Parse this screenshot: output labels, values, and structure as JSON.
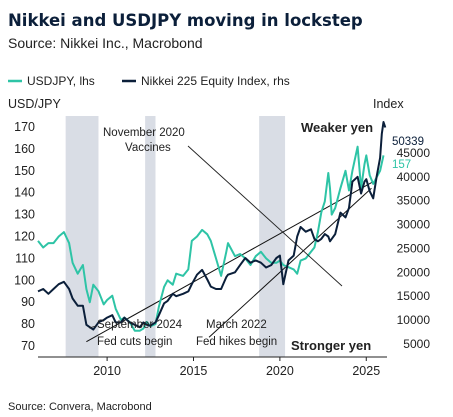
{
  "chart_data": {
    "type": "line",
    "title": "Nikkei and USDJPY moving in lockstep",
    "subtitle": "Source: Nikkei Inc., Macrobond",
    "source_note": "Source: Convera, Macrobond",
    "left_axis": {
      "label": "USD/JPY",
      "range": [
        65,
        175
      ],
      "ticks": [
        70,
        80,
        90,
        100,
        110,
        120,
        130,
        140,
        150,
        160,
        170
      ]
    },
    "right_axis": {
      "label": "Index",
      "range": [
        2250,
        52750
      ],
      "ticks": [
        5000,
        10000,
        15000,
        20000,
        25000,
        30000,
        35000,
        40000,
        45000
      ]
    },
    "x_axis": {
      "range": [
        2006,
        2026.2
      ],
      "ticks": [
        2010,
        2015,
        2020,
        2025
      ]
    },
    "shaded_periods": [
      [
        2007.6,
        2009.5
      ],
      [
        2012.2,
        2012.8
      ],
      [
        2018.8,
        2020.3
      ]
    ],
    "series": [
      {
        "name": "USDJPY, lhs",
        "axis": "left",
        "color": "#2ec4a6",
        "last_value_label": "157",
        "points": [
          [
            2006.0,
            118
          ],
          [
            2006.3,
            115
          ],
          [
            2006.6,
            117
          ],
          [
            2006.9,
            117
          ],
          [
            2007.2,
            120
          ],
          [
            2007.5,
            122
          ],
          [
            2007.8,
            117
          ],
          [
            2008.0,
            108
          ],
          [
            2008.3,
            103
          ],
          [
            2008.6,
            107
          ],
          [
            2008.8,
            96
          ],
          [
            2009.0,
            90
          ],
          [
            2009.2,
            98
          ],
          [
            2009.5,
            95
          ],
          [
            2009.8,
            89
          ],
          [
            2010.0,
            91
          ],
          [
            2010.3,
            93
          ],
          [
            2010.5,
            87
          ],
          [
            2010.8,
            82
          ],
          [
            2011.0,
            83
          ],
          [
            2011.3,
            81
          ],
          [
            2011.6,
            77
          ],
          [
            2011.9,
            77
          ],
          [
            2012.1,
            78
          ],
          [
            2012.3,
            81
          ],
          [
            2012.5,
            79
          ],
          [
            2012.8,
            80
          ],
          [
            2013.0,
            88
          ],
          [
            2013.3,
            97
          ],
          [
            2013.5,
            100
          ],
          [
            2013.8,
            98
          ],
          [
            2014.0,
            103
          ],
          [
            2014.4,
            102
          ],
          [
            2014.7,
            105
          ],
          [
            2014.9,
            118
          ],
          [
            2015.2,
            120
          ],
          [
            2015.5,
            123
          ],
          [
            2015.8,
            121
          ],
          [
            2016.0,
            118
          ],
          [
            2016.3,
            110
          ],
          [
            2016.6,
            102
          ],
          [
            2016.9,
            113
          ],
          [
            2017.0,
            117
          ],
          [
            2017.4,
            111
          ],
          [
            2017.7,
            112
          ],
          [
            2018.0,
            110
          ],
          [
            2018.3,
            107
          ],
          [
            2018.6,
            111
          ],
          [
            2018.9,
            113
          ],
          [
            2019.2,
            110
          ],
          [
            2019.5,
            108
          ],
          [
            2019.8,
            108
          ],
          [
            2020.0,
            109
          ],
          [
            2020.2,
            107
          ],
          [
            2020.5,
            106
          ],
          [
            2020.8,
            105
          ],
          [
            2021.0,
            103
          ],
          [
            2021.2,
            109
          ],
          [
            2021.5,
            110
          ],
          [
            2021.8,
            113
          ],
          [
            2022.0,
            115
          ],
          [
            2022.2,
            122
          ],
          [
            2022.4,
            131
          ],
          [
            2022.6,
            136
          ],
          [
            2022.8,
            149
          ],
          [
            2022.9,
            142
          ],
          [
            2023.0,
            130
          ],
          [
            2023.2,
            133
          ],
          [
            2023.5,
            142
          ],
          [
            2023.8,
            150
          ],
          [
            2024.0,
            141
          ],
          [
            2024.2,
            150
          ],
          [
            2024.5,
            161
          ],
          [
            2024.7,
            142
          ],
          [
            2024.9,
            153
          ],
          [
            2025.0,
            157
          ],
          [
            2025.2,
            148
          ],
          [
            2025.4,
            144
          ],
          [
            2025.6,
            147
          ],
          [
            2025.8,
            150
          ],
          [
            2026.0,
            157
          ]
        ]
      },
      {
        "name": "Nikkei 225 Equity Index, rhs",
        "axis": "right",
        "color": "#0b1f3a",
        "last_value_label": "50339",
        "points": [
          [
            2006.0,
            16000
          ],
          [
            2006.3,
            16500
          ],
          [
            2006.6,
            15500
          ],
          [
            2006.9,
            16500
          ],
          [
            2007.2,
            17500
          ],
          [
            2007.5,
            18000
          ],
          [
            2007.8,
            16500
          ],
          [
            2008.0,
            14500
          ],
          [
            2008.3,
            13000
          ],
          [
            2008.6,
            13000
          ],
          [
            2008.8,
            9000
          ],
          [
            2009.0,
            8500
          ],
          [
            2009.2,
            8000
          ],
          [
            2009.5,
            9500
          ],
          [
            2009.8,
            10000
          ],
          [
            2010.0,
            10500
          ],
          [
            2010.3,
            11000
          ],
          [
            2010.5,
            9500
          ],
          [
            2010.8,
            9500
          ],
          [
            2011.0,
            10500
          ],
          [
            2011.3,
            9500
          ],
          [
            2011.6,
            9000
          ],
          [
            2011.9,
            8500
          ],
          [
            2012.1,
            9500
          ],
          [
            2012.3,
            9000
          ],
          [
            2012.5,
            8800
          ],
          [
            2012.8,
            9500
          ],
          [
            2013.0,
            11000
          ],
          [
            2013.3,
            13500
          ],
          [
            2013.5,
            14000
          ],
          [
            2013.8,
            15500
          ],
          [
            2014.0,
            15000
          ],
          [
            2014.4,
            15500
          ],
          [
            2014.7,
            16000
          ],
          [
            2014.9,
            17500
          ],
          [
            2015.2,
            19500
          ],
          [
            2015.5,
            20500
          ],
          [
            2015.8,
            18500
          ],
          [
            2016.0,
            17000
          ],
          [
            2016.3,
            16500
          ],
          [
            2016.6,
            16500
          ],
          [
            2016.9,
            19000
          ],
          [
            2017.0,
            19500
          ],
          [
            2017.4,
            20000
          ],
          [
            2017.7,
            21500
          ],
          [
            2018.0,
            23000
          ],
          [
            2018.3,
            22000
          ],
          [
            2018.6,
            22500
          ],
          [
            2018.9,
            22000
          ],
          [
            2019.2,
            21000
          ],
          [
            2019.5,
            21500
          ],
          [
            2019.8,
            23000
          ],
          [
            2020.0,
            23500
          ],
          [
            2020.2,
            17500
          ],
          [
            2020.5,
            22500
          ],
          [
            2020.8,
            23500
          ],
          [
            2021.0,
            27500
          ],
          [
            2021.2,
            29500
          ],
          [
            2021.5,
            28500
          ],
          [
            2021.8,
            29000
          ],
          [
            2022.0,
            27000
          ],
          [
            2022.2,
            26500
          ],
          [
            2022.4,
            27000
          ],
          [
            2022.6,
            28000
          ],
          [
            2022.8,
            27500
          ],
          [
            2022.9,
            26500
          ],
          [
            2023.0,
            27000
          ],
          [
            2023.2,
            28000
          ],
          [
            2023.5,
            32500
          ],
          [
            2023.8,
            31500
          ],
          [
            2024.0,
            33500
          ],
          [
            2024.2,
            39000
          ],
          [
            2024.5,
            40000
          ],
          [
            2024.7,
            36500
          ],
          [
            2024.9,
            39000
          ],
          [
            2025.0,
            39500
          ],
          [
            2025.2,
            37000
          ],
          [
            2025.4,
            35500
          ],
          [
            2025.6,
            40000
          ],
          [
            2025.8,
            44000
          ],
          [
            2025.9,
            49000
          ],
          [
            2026.0,
            51500
          ],
          [
            2026.1,
            50339
          ]
        ]
      }
    ],
    "annotations": [
      {
        "text_lines": [
          "November 2020",
          "Vaccines"
        ],
        "point_to": [
          2023.5,
          137
        ]
      },
      {
        "text_lines": [
          "September 2024",
          "Fed cuts begin"
        ],
        "point_to": [
          2008.8,
          75
        ]
      },
      {
        "text_lines": [
          "March 2022",
          "Fed hikes begin"
        ]
      }
    ],
    "labels": {
      "weaker": "Weaker yen",
      "stronger": "Stronger yen"
    },
    "trend_lines": [
      [
        [
          2008.8,
          72
        ],
        [
          2025.4,
          145
        ]
      ],
      [
        [
          2015.9,
          74
        ],
        [
          2025.3,
          142
        ]
      ]
    ],
    "grid": false,
    "legend_position": "top"
  }
}
